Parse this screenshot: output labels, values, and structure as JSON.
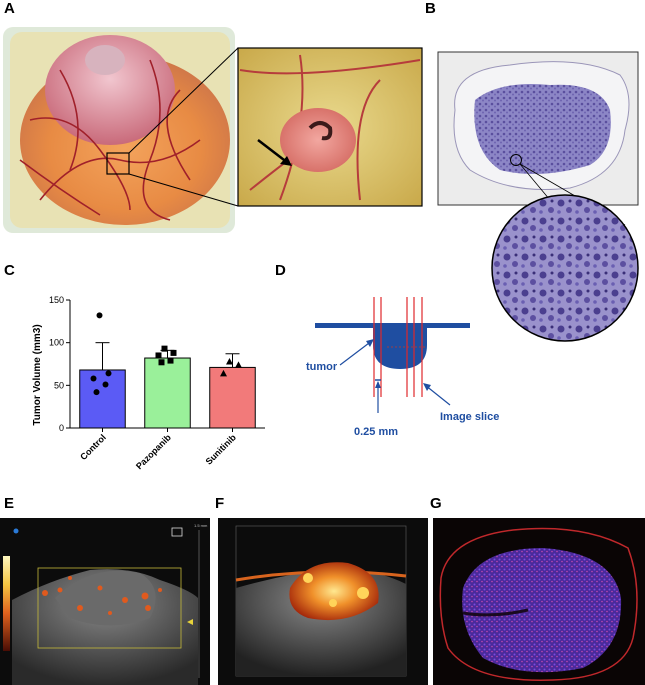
{
  "panels": {
    "a": "A",
    "b": "B",
    "c": "C",
    "d": "D",
    "e": "E",
    "f": "F",
    "g": "G"
  },
  "chart_data": {
    "type": "bar",
    "categories": [
      "Control",
      "Pazopanib",
      "Sunitinib"
    ],
    "values": [
      68,
      82,
      71
    ],
    "error_upper": [
      100,
      91,
      87
    ],
    "points": [
      [
        132,
        64,
        58,
        51,
        42
      ],
      [
        93,
        88,
        85,
        79,
        77
      ],
      [
        78,
        74,
        64
      ]
    ],
    "point_markers": [
      "circle",
      "square",
      "triangle"
    ],
    "colors": [
      "#5b5bf5",
      "#9af09a",
      "#f27a7a"
    ],
    "ylabel": "Tumor Volume (mm3)",
    "yticks": [
      0,
      50,
      100,
      150
    ],
    "ylim": [
      0,
      150
    ]
  },
  "diagram": {
    "tumor_label": "tumor",
    "thickness_label": "0.25 mm",
    "slice_label": "Image slice"
  },
  "ultrasound": {
    "depth_label": "1.5 mm"
  }
}
